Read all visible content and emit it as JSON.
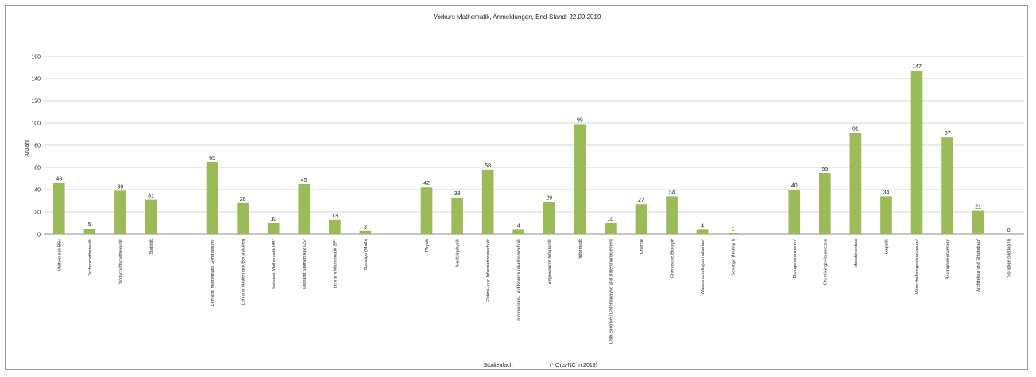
{
  "chart_data": {
    "type": "bar",
    "title": "Vorkurs Mathematik, Anmeldungen, End-Stand: 22.09.2019",
    "xlabel": "Studienfach",
    "ylabel": "Anzahl",
    "note": "(* Orts-NC in 2019)",
    "ylim": [
      0,
      160
    ],
    "yticks": [
      0,
      20,
      40,
      60,
      80,
      100,
      120,
      140,
      160
    ],
    "grid": true,
    "bar_color": "#9bbb59",
    "categories": [
      "Mathematik BSc",
      "Technomathematik",
      "Wirtschaftsmathematik",
      "Statistik",
      "",
      "Lehramt Mathematik Gymnasium*",
      "Lehramt Mathematik Berufskolleg",
      "Lehramt Mathematik HR*",
      "Lehramt Mathematik GS*",
      "Lehramt Mathematik SP*",
      "Sonstige (Math)",
      "",
      "Physik",
      "Medizinphysik",
      "Elektro- und Informationstechnik",
      "Informations- und Kommunikationstechnik",
      "Angewandte Informatik",
      "Informatik",
      "Data Science / Datenanalyse und Datenmanagement",
      "Chemie",
      "Chemische Biologie",
      "Wasserschaftsjournalismus*",
      "Sonstige (NatIng I)",
      "",
      "Bioingenieurwesen*",
      "Chemieingenieurwesen",
      "Maschinenbau",
      "Logistik",
      "Wirtschaftsingenieurwesen*",
      "Bauingenieurwesen*",
      "Architektur und Städtebau*",
      "Sonstige (NatIng II)"
    ],
    "values": [
      46,
      5,
      39,
      31,
      null,
      65,
      28,
      10,
      45,
      13,
      3,
      null,
      42,
      33,
      58,
      4,
      29,
      99,
      10,
      27,
      34,
      4,
      1,
      null,
      40,
      55,
      91,
      34,
      147,
      87,
      21,
      0
    ]
  }
}
